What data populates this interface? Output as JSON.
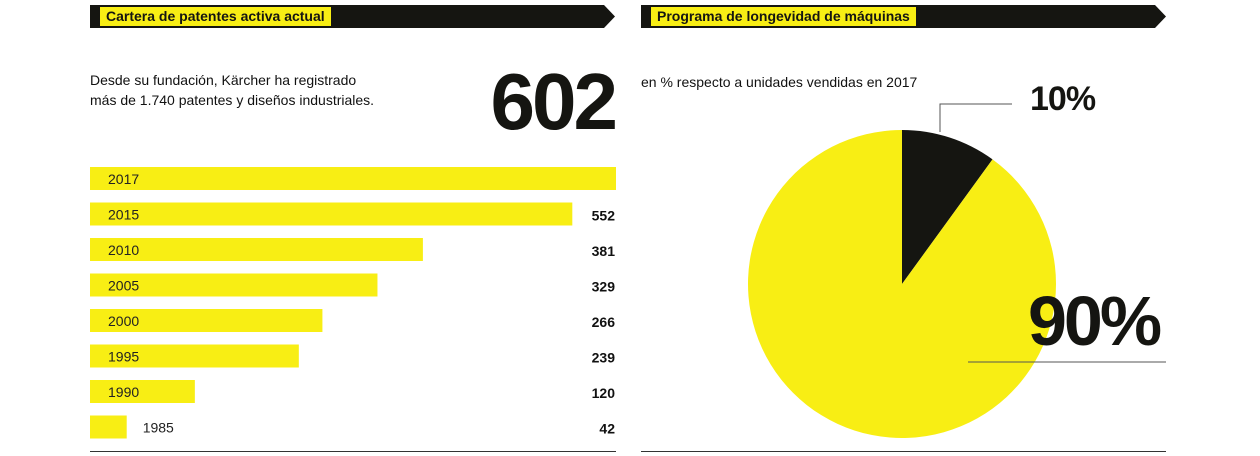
{
  "left_panel": {
    "title": "Cartera de patentes activa actual",
    "intro_line1": "Desde su fundación, Kärcher ha registrado",
    "intro_line2": "más de 1.740 patentes y diseños industriales.",
    "highlight_value": "602"
  },
  "right_panel": {
    "title": "Programa de longevidad de máquinas",
    "subtitle": "en % respecto a unidades vendidas en 2017"
  },
  "colors": {
    "yellow": "#f8ee14",
    "black": "#151511",
    "rule": "#333333"
  },
  "chart_data": [
    {
      "type": "bar",
      "orientation": "horizontal",
      "title": "Cartera de patentes activa actual",
      "categories": [
        "2017",
        "2015",
        "2010",
        "2005",
        "2000",
        "1995",
        "1990",
        "1985"
      ],
      "values": [
        602,
        552,
        381,
        329,
        266,
        239,
        120,
        42
      ],
      "value_labels": [
        "",
        "552",
        "381",
        "329",
        "266",
        "239",
        "120",
        "42"
      ],
      "xlim": [
        0,
        602
      ],
      "grid": false,
      "legend": "none"
    },
    {
      "type": "pie",
      "title": "Programa de longevidad de máquinas",
      "subtitle": "en % respecto a unidades vendidas en 2017",
      "slices": [
        {
          "label": "10%",
          "value": 10,
          "color": "#151511"
        },
        {
          "label": "90%",
          "value": 90,
          "color": "#f8ee14"
        }
      ],
      "legend": "none"
    }
  ]
}
